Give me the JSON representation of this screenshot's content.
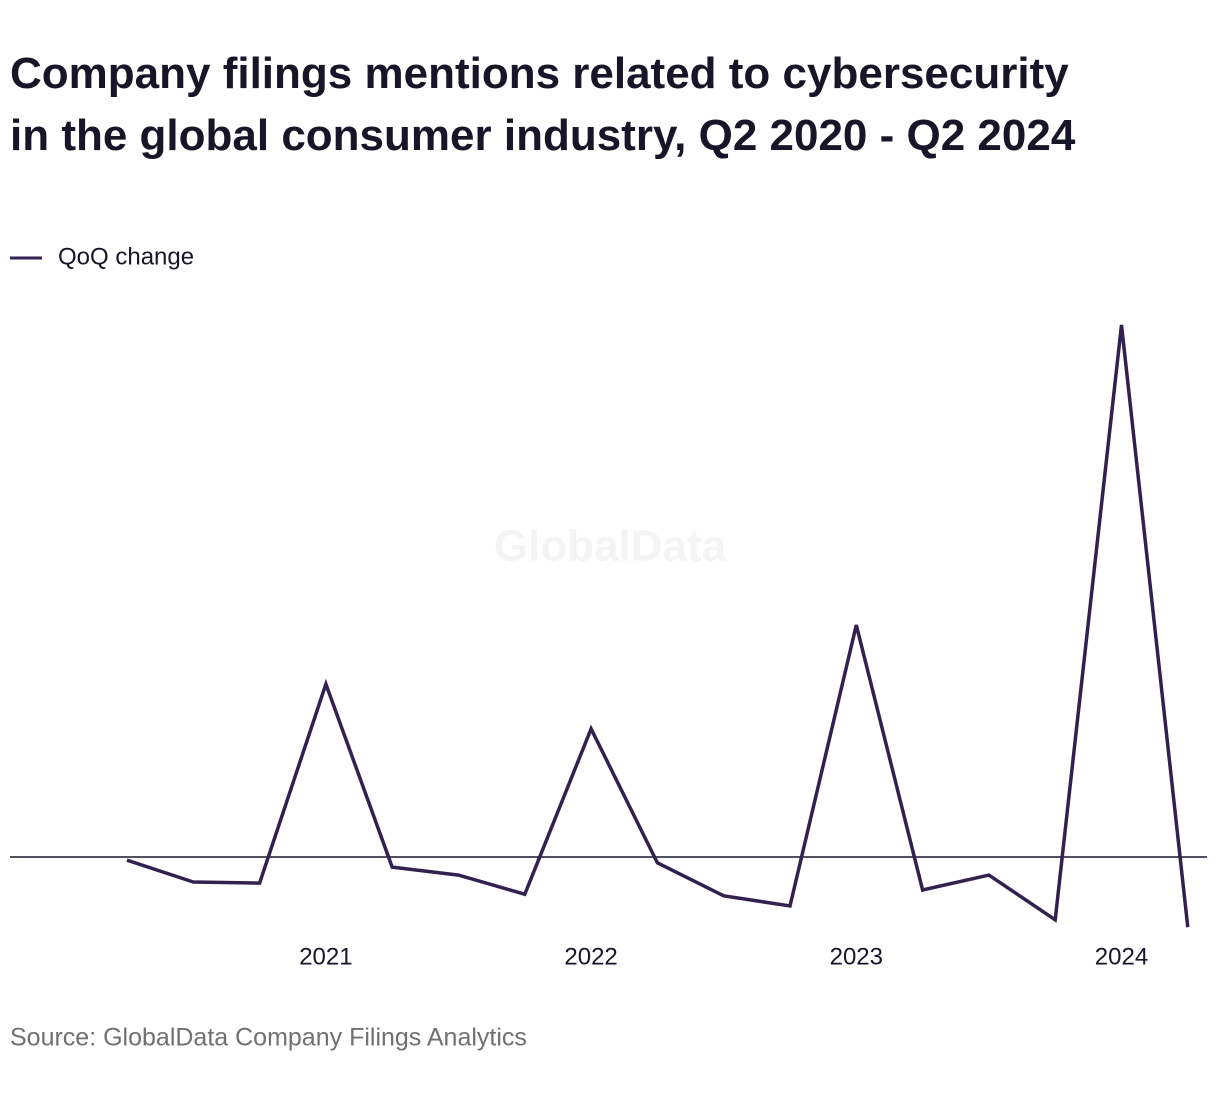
{
  "chart_data": {
    "type": "line",
    "title": "Company filings mentions related to cybersecurity in the global consumer industry, Q2 2020 - Q2 2024",
    "watermark": "GlobalData",
    "source": "Source: GlobalData Company Filings Analytics",
    "categories": [
      null,
      null,
      null,
      "2021",
      null,
      null,
      null,
      "2022",
      null,
      null,
      null,
      "2023",
      null,
      null,
      null,
      "2024",
      null
    ],
    "series": [
      {
        "name": "QoQ change",
        "color": "#32204f",
        "values": [
          -0.6,
          -4.7,
          -4.9,
          32.5,
          -1.9,
          -3.4,
          -7.0,
          24.1,
          -1.1,
          -7.3,
          -9.2,
          43.6,
          -6.2,
          -3.4,
          -11.8,
          100,
          -13.2
        ]
      }
    ],
    "ylim": [
      -20,
      105
    ]
  }
}
